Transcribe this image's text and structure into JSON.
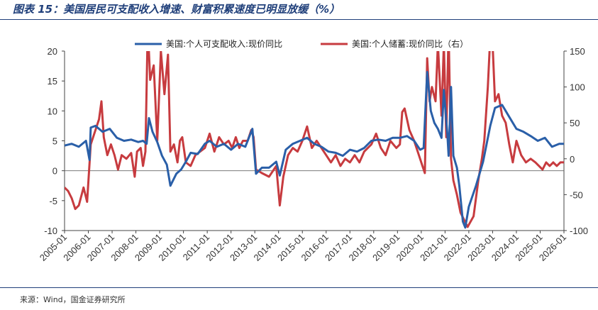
{
  "title": "图表 15：美国居民可支配收入增速、财富积累速度已明显放缓（%）",
  "source": "来源：Wind，国金证券研究所",
  "chart_data": {
    "type": "line",
    "x_tick_labels": [
      "2005-01",
      "2006-01",
      "2007-01",
      "2008-01",
      "2009-01",
      "2010-01",
      "2011-01",
      "2012-01",
      "2013-01",
      "2014-01",
      "2015-01",
      "2016-01",
      "2017-01",
      "2018-01",
      "2019-01",
      "2020-01",
      "2021-01",
      "2022-01",
      "2023-01",
      "2024-01",
      "2025-01",
      "2026-01"
    ],
    "x_range": [
      2005.0,
      2026.0
    ],
    "y_left": {
      "range": [
        -10,
        20
      ],
      "ticks": [
        "20",
        "15",
        "10",
        "5",
        "0",
        "-5",
        "-10"
      ],
      "tick_values": [
        20,
        15,
        10,
        5,
        0,
        -5,
        -10
      ]
    },
    "y_right": {
      "range": [
        -100,
        150
      ],
      "ticks": [
        "150",
        "100",
        "50",
        "0",
        "-50",
        "-100"
      ],
      "tick_values": [
        150,
        100,
        50,
        0,
        -50,
        -100
      ]
    },
    "legend_position": "top",
    "grid": false,
    "series": [
      {
        "name": "美国:个人可支配收入:现价同比",
        "color": "#2a5fa8",
        "axis": "left",
        "points": [
          [
            2005.0,
            4.2
          ],
          [
            2005.3,
            4.5
          ],
          [
            2005.6,
            4.0
          ],
          [
            2005.9,
            5.0
          ],
          [
            2006.05,
            1.8
          ],
          [
            2006.1,
            7.2
          ],
          [
            2006.3,
            7.5
          ],
          [
            2006.6,
            6.5
          ],
          [
            2006.9,
            7.0
          ],
          [
            2007.2,
            5.5
          ],
          [
            2007.5,
            5.0
          ],
          [
            2007.8,
            5.2
          ],
          [
            2008.1,
            4.8
          ],
          [
            2008.3,
            5.0
          ],
          [
            2008.45,
            4.5
          ],
          [
            2008.55,
            8.8
          ],
          [
            2008.7,
            6.5
          ],
          [
            2008.9,
            4.8
          ],
          [
            2009.1,
            2.5
          ],
          [
            2009.3,
            1.0
          ],
          [
            2009.45,
            -2.5
          ],
          [
            2009.7,
            -0.5
          ],
          [
            2009.9,
            0.2
          ],
          [
            2010.1,
            1.5
          ],
          [
            2010.3,
            3.0
          ],
          [
            2010.6,
            2.8
          ],
          [
            2010.9,
            4.5
          ],
          [
            2011.1,
            5.0
          ],
          [
            2011.4,
            4.0
          ],
          [
            2011.7,
            4.5
          ],
          [
            2012.0,
            3.5
          ],
          [
            2012.3,
            4.5
          ],
          [
            2012.6,
            4.0
          ],
          [
            2012.9,
            7.0
          ],
          [
            2013.05,
            -0.5
          ],
          [
            2013.3,
            0.5
          ],
          [
            2013.6,
            0.5
          ],
          [
            2013.9,
            1.5
          ],
          [
            2014.05,
            -0.8
          ],
          [
            2014.3,
            3.5
          ],
          [
            2014.6,
            4.5
          ],
          [
            2014.9,
            5.0
          ],
          [
            2015.2,
            5.5
          ],
          [
            2015.5,
            4.5
          ],
          [
            2015.8,
            4.0
          ],
          [
            2016.1,
            3.2
          ],
          [
            2016.4,
            3.0
          ],
          [
            2016.7,
            2.5
          ],
          [
            2017.0,
            3.5
          ],
          [
            2017.3,
            3.2
          ],
          [
            2017.6,
            3.8
          ],
          [
            2017.9,
            5.0
          ],
          [
            2018.2,
            5.2
          ],
          [
            2018.5,
            5.0
          ],
          [
            2018.8,
            5.5
          ],
          [
            2019.1,
            5.5
          ],
          [
            2019.4,
            5.8
          ],
          [
            2019.7,
            5.0
          ],
          [
            2019.95,
            3.5
          ],
          [
            2020.1,
            3.8
          ],
          [
            2020.25,
            16.5
          ],
          [
            2020.4,
            10.0
          ],
          [
            2020.55,
            8.0
          ],
          [
            2020.7,
            7.0
          ],
          [
            2020.85,
            5.5
          ],
          [
            2020.95,
            13.5
          ],
          [
            2021.1,
            6.0
          ],
          [
            2021.15,
            2.5
          ],
          [
            2021.25,
            14.0
          ],
          [
            2021.35,
            2.5
          ],
          [
            2021.5,
            0.5
          ],
          [
            2021.6,
            -2.5
          ],
          [
            2021.75,
            -8.5
          ],
          [
            2021.85,
            -9.5
          ],
          [
            2022.0,
            -6.0
          ],
          [
            2022.3,
            -2.5
          ],
          [
            2022.6,
            1.5
          ],
          [
            2022.9,
            7.5
          ],
          [
            2023.1,
            10.5
          ],
          [
            2023.4,
            11.0
          ],
          [
            2023.7,
            9.0
          ],
          [
            2024.0,
            7.0
          ],
          [
            2024.3,
            6.5
          ],
          [
            2024.6,
            5.8
          ],
          [
            2024.9,
            5.0
          ],
          [
            2025.2,
            5.5
          ],
          [
            2025.5,
            4.0
          ],
          [
            2025.8,
            4.5
          ],
          [
            2026.0,
            4.5
          ]
        ]
      },
      {
        "name": "美国:个人储蓄:现价同比（右）",
        "color": "#c73b3f",
        "axis": "right",
        "points": [
          [
            2005.0,
            -40
          ],
          [
            2005.15,
            -45
          ],
          [
            2005.3,
            -55
          ],
          [
            2005.45,
            -70
          ],
          [
            2005.6,
            -65
          ],
          [
            2005.8,
            -40
          ],
          [
            2005.95,
            -60
          ],
          [
            2006.1,
            20
          ],
          [
            2006.3,
            40
          ],
          [
            2006.45,
            55
          ],
          [
            2006.55,
            80
          ],
          [
            2006.65,
            30
          ],
          [
            2006.8,
            5
          ],
          [
            2006.95,
            20
          ],
          [
            2007.1,
            5
          ],
          [
            2007.25,
            -15
          ],
          [
            2007.4,
            5
          ],
          [
            2007.6,
            0
          ],
          [
            2007.8,
            8
          ],
          [
            2007.95,
            -25
          ],
          [
            2008.05,
            10
          ],
          [
            2008.2,
            15
          ],
          [
            2008.3,
            -10
          ],
          [
            2008.4,
            10
          ],
          [
            2008.5,
            185
          ],
          [
            2008.6,
            110
          ],
          [
            2008.75,
            130
          ],
          [
            2008.9,
            25
          ],
          [
            2009.05,
            150
          ],
          [
            2009.2,
            90
          ],
          [
            2009.35,
            145
          ],
          [
            2009.45,
            10
          ],
          [
            2009.6,
            20
          ],
          [
            2009.75,
            -5
          ],
          [
            2009.85,
            25
          ],
          [
            2009.95,
            30
          ],
          [
            2010.1,
            -5
          ],
          [
            2010.3,
            -10
          ],
          [
            2010.5,
            5
          ],
          [
            2010.7,
            10
          ],
          [
            2010.9,
            15
          ],
          [
            2011.1,
            35
          ],
          [
            2011.3,
            10
          ],
          [
            2011.5,
            30
          ],
          [
            2011.7,
            20
          ],
          [
            2011.9,
            25
          ],
          [
            2012.05,
            15
          ],
          [
            2012.2,
            30
          ],
          [
            2012.35,
            15
          ],
          [
            2012.5,
            25
          ],
          [
            2012.7,
            25
          ],
          [
            2012.85,
            40
          ],
          [
            2012.95,
            30
          ],
          [
            2013.05,
            -15
          ],
          [
            2013.3,
            -20
          ],
          [
            2013.6,
            -25
          ],
          [
            2013.9,
            -10
          ],
          [
            2014.05,
            -65
          ],
          [
            2014.2,
            -25
          ],
          [
            2014.4,
            5
          ],
          [
            2014.6,
            15
          ],
          [
            2014.8,
            10
          ],
          [
            2015.0,
            25
          ],
          [
            2015.2,
            45
          ],
          [
            2015.4,
            15
          ],
          [
            2015.6,
            25
          ],
          [
            2015.8,
            15
          ],
          [
            2016.0,
            5
          ],
          [
            2016.2,
            -5
          ],
          [
            2016.4,
            5
          ],
          [
            2016.6,
            -10
          ],
          [
            2016.8,
            0
          ],
          [
            2017.0,
            -5
          ],
          [
            2017.2,
            5
          ],
          [
            2017.4,
            -5
          ],
          [
            2017.6,
            10
          ],
          [
            2017.9,
            20
          ],
          [
            2018.1,
            35
          ],
          [
            2018.3,
            15
          ],
          [
            2018.5,
            5
          ],
          [
            2018.7,
            25
          ],
          [
            2018.95,
            15
          ],
          [
            2019.1,
            20
          ],
          [
            2019.2,
            65
          ],
          [
            2019.3,
            70
          ],
          [
            2019.5,
            40
          ],
          [
            2019.7,
            25
          ],
          [
            2019.9,
            5
          ],
          [
            2020.05,
            -10
          ],
          [
            2020.15,
            -20
          ],
          [
            2020.25,
            140
          ],
          [
            2020.35,
            80
          ],
          [
            2020.45,
            100
          ],
          [
            2020.6,
            80
          ],
          [
            2020.7,
            160
          ],
          [
            2020.85,
            60
          ],
          [
            2020.95,
            160
          ],
          [
            2021.05,
            30
          ],
          [
            2021.15,
            180
          ],
          [
            2021.25,
            0
          ],
          [
            2021.35,
            -30
          ],
          [
            2021.5,
            -50
          ],
          [
            2021.65,
            -75
          ],
          [
            2021.8,
            -85
          ],
          [
            2021.95,
            -95
          ],
          [
            2022.2,
            -80
          ],
          [
            2022.4,
            -30
          ],
          [
            2022.55,
            0
          ],
          [
            2022.65,
            25
          ],
          [
            2022.8,
            100
          ],
          [
            2022.9,
            170
          ],
          [
            2023.0,
            160
          ],
          [
            2023.1,
            80
          ],
          [
            2023.25,
            90
          ],
          [
            2023.4,
            60
          ],
          [
            2023.55,
            50
          ],
          [
            2023.7,
            20
          ],
          [
            2023.85,
            -5
          ],
          [
            2024.0,
            25
          ],
          [
            2024.2,
            5
          ],
          [
            2024.4,
            -5
          ],
          [
            2024.6,
            0
          ],
          [
            2024.8,
            -5
          ],
          [
            2024.95,
            -10
          ],
          [
            2025.1,
            -15
          ],
          [
            2025.25,
            -5
          ],
          [
            2025.4,
            -10
          ],
          [
            2025.55,
            -5
          ],
          [
            2025.7,
            -10
          ],
          [
            2025.85,
            -5
          ],
          [
            2026.0,
            -5
          ]
        ]
      }
    ]
  }
}
